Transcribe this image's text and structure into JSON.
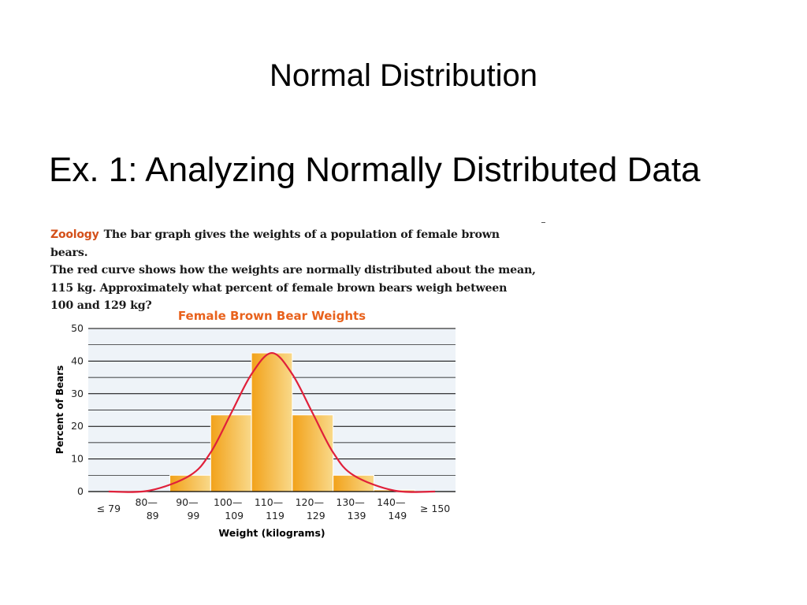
{
  "slide": {
    "title": "Normal Distribution",
    "subtitle": "Ex. 1:  Analyzing Normally Distributed Data"
  },
  "problem": {
    "tag": "Zoology",
    "lines": [
      "The bar graph gives the weights of a population of female brown bears.",
      "The red curve shows how the weights are normally distributed about the mean,",
      "115 kg.  Approximately what percent of female brown bears weigh between",
      "100 and 129 kg?"
    ]
  },
  "colors": {
    "tag": "#d4501a",
    "chart_title": "#e8621d",
    "bar_dark": "#f2a21a",
    "bar_light": "#f9d98a",
    "curve": "#e0203a",
    "plot_bg": "#eef3f8",
    "grid": "#000000"
  },
  "chart_data": {
    "type": "bar",
    "title": "Female Brown Bear Weights",
    "xlabel": "Weight (kilograms)",
    "ylabel": "Percent of Bears",
    "ylim": [
      0,
      50
    ],
    "yticks": [
      0,
      10,
      20,
      30,
      40,
      50
    ],
    "grid": true,
    "categories": [
      [
        "≤ 79"
      ],
      [
        "80—",
        "89"
      ],
      [
        "90—",
        "99"
      ],
      [
        "100—",
        "109"
      ],
      [
        "110—",
        "119"
      ],
      [
        "120—",
        "129"
      ],
      [
        "130—",
        "139"
      ],
      [
        "140—",
        "149"
      ],
      [
        "≥ 150"
      ]
    ],
    "values": [
      0,
      0,
      5,
      23.5,
      42.5,
      23.5,
      5,
      0.5,
      0
    ],
    "curve": {
      "description": "normal curve about the mean",
      "mean": 115,
      "points": [
        [
          0,
          0
        ],
        [
          1,
          0.3
        ],
        [
          2,
          5
        ],
        [
          2.5,
          12
        ],
        [
          3,
          24
        ],
        [
          3.5,
          36
        ],
        [
          4,
          42.5
        ],
        [
          4.5,
          36
        ],
        [
          5,
          24
        ],
        [
          5.5,
          12
        ],
        [
          6,
          5
        ],
        [
          7,
          0.3
        ],
        [
          8,
          0
        ]
      ]
    }
  }
}
